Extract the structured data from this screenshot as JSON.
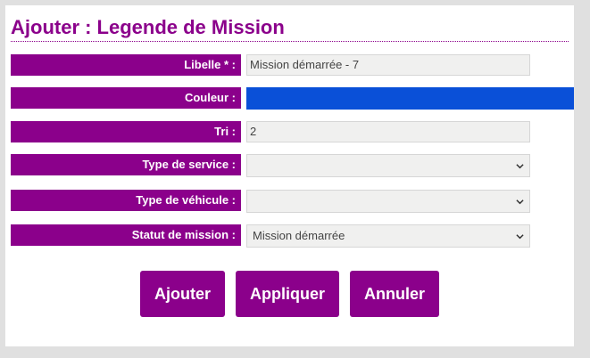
{
  "form": {
    "title": "Ajouter : Legende de Mission",
    "libelle": {
      "label": "Libelle * :",
      "value": "Mission démarrée - 7"
    },
    "couleur": {
      "label": "Couleur :",
      "color": "#0a50d8"
    },
    "tri": {
      "label": "Tri :",
      "value": "2"
    },
    "type_service": {
      "label": "Type de service :",
      "value": ""
    },
    "type_vehicule": {
      "label": "Type de véhicule :",
      "value": ""
    },
    "statut": {
      "label": "Statut de mission :",
      "value": "Mission démarrée"
    }
  },
  "buttons": {
    "ajouter": "Ajouter",
    "appliquer": "Appliquer",
    "annuler": "Annuler"
  },
  "colors": {
    "accent": "#8b008b",
    "field_bg": "#f0f0ef",
    "page_bg": "#e0e0e0"
  },
  "icons": {
    "dropdown": "chevron-down-icon"
  }
}
